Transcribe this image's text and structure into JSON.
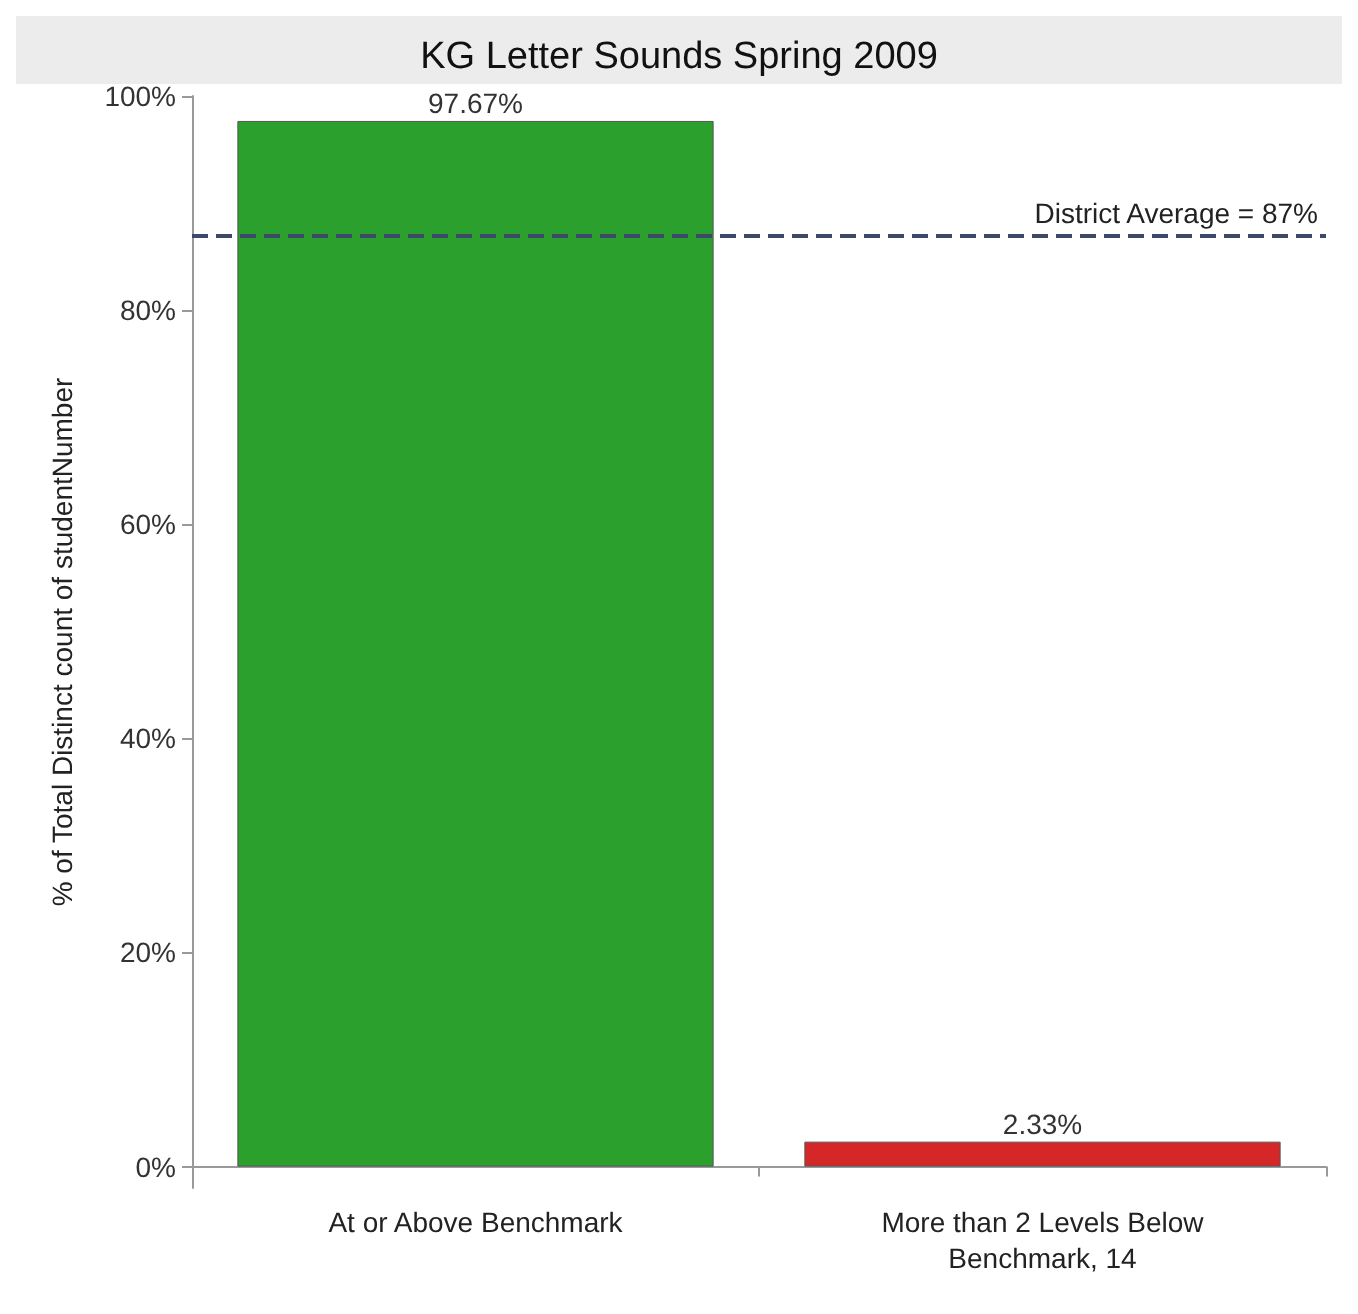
{
  "chart_data": {
    "type": "bar",
    "title": "KG Letter Sounds Spring 2009",
    "ylabel": "% of Total Distinct count of studentNumber",
    "categories": [
      "At or Above Benchmark",
      "More than 2 Levels Below\nBenchmark, 14"
    ],
    "values": [
      97.67,
      2.33
    ],
    "colors": [
      "#2ca02c",
      "#d62728"
    ],
    "value_labels": [
      "97.67%",
      "2.33%"
    ],
    "ylim": [
      -2,
      100
    ],
    "yticks": [
      {
        "value": 0,
        "label": "0%"
      },
      {
        "value": 20,
        "label": "20%"
      },
      {
        "value": 40,
        "label": "40%"
      },
      {
        "value": 60,
        "label": "60%"
      },
      {
        "value": 80,
        "label": "80%"
      },
      {
        "value": 100,
        "label": "100%"
      }
    ],
    "ref_lines": [
      {
        "axis": "y",
        "value": 87,
        "label": "District Average = 87%",
        "color": "#3b4a6b",
        "line_style": "dashed"
      }
    ],
    "grid": false
  }
}
